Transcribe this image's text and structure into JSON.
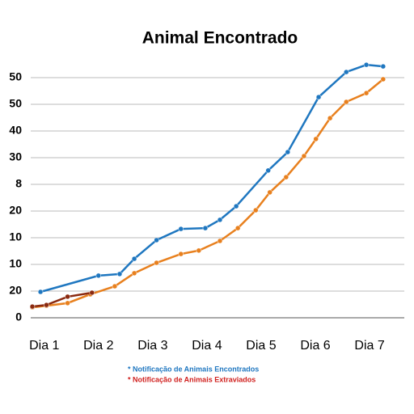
{
  "chart_data": {
    "type": "line",
    "title": "Animal Encontrado",
    "xlim": [
      0.75,
      7.64
    ],
    "ylim": [
      0,
      100
    ],
    "xticks": [
      {
        "value": 1,
        "label": "Dia 1"
      },
      {
        "value": 2,
        "label": "Dia 2"
      },
      {
        "value": 3,
        "label": "Dia 3"
      },
      {
        "value": 4,
        "label": "Dia 4"
      },
      {
        "value": 5,
        "label": "Dia 5"
      },
      {
        "value": 6,
        "label": "Dia 6"
      },
      {
        "value": 7,
        "label": "Dia 7"
      }
    ],
    "yticks": [
      0,
      {
        "value": 10,
        "label": "20"
      },
      {
        "value": 20,
        "label": "10"
      },
      {
        "value": 30,
        "label": "10"
      },
      {
        "value": 40,
        "label": "20"
      },
      {
        "value": 50,
        "label": "8"
      },
      {
        "value": 60,
        "label": "30"
      },
      {
        "value": 70,
        "label": "40"
      },
      {
        "value": 80,
        "label": "50"
      },
      {
        "value": 90,
        "label": "50"
      }
    ],
    "grid": true,
    "series": [
      {
        "name": "* Notificação de Animais Encontrados",
        "color": "#1f77c0",
        "x": [
          0.93,
          2.0,
          2.39,
          2.66,
          3.07,
          3.52,
          3.97,
          4.24,
          4.54,
          5.13,
          5.49,
          6.06,
          6.57,
          6.94,
          7.25
        ],
        "values": [
          9.7,
          15.8,
          16.4,
          22.1,
          29.1,
          33.3,
          33.6,
          36.7,
          41.8,
          55.2,
          62.1,
          82.7,
          92.1,
          94.8,
          94.2
        ]
      },
      {
        "name": "* Notificação de Animais Extraviados",
        "color": "#e8801e",
        "x": [
          0.78,
          1.04,
          1.43,
          1.85,
          2.3,
          2.66,
          3.07,
          3.52,
          3.85,
          4.24,
          4.57,
          4.9,
          5.16,
          5.46,
          5.79,
          6.01,
          6.27,
          6.57,
          6.94,
          7.25
        ],
        "values": [
          3.9,
          4.5,
          5.5,
          8.8,
          11.8,
          16.7,
          20.6,
          23.9,
          25.2,
          28.8,
          33.6,
          40.3,
          47.0,
          52.7,
          60.6,
          67.0,
          74.8,
          80.9,
          84.2,
          89.4
        ]
      },
      {
        "color": "#8b2a10",
        "x": [
          0.78,
          1.04,
          1.43,
          1.88
        ],
        "values": [
          4.2,
          4.8,
          7.9,
          9.4
        ]
      }
    ]
  }
}
